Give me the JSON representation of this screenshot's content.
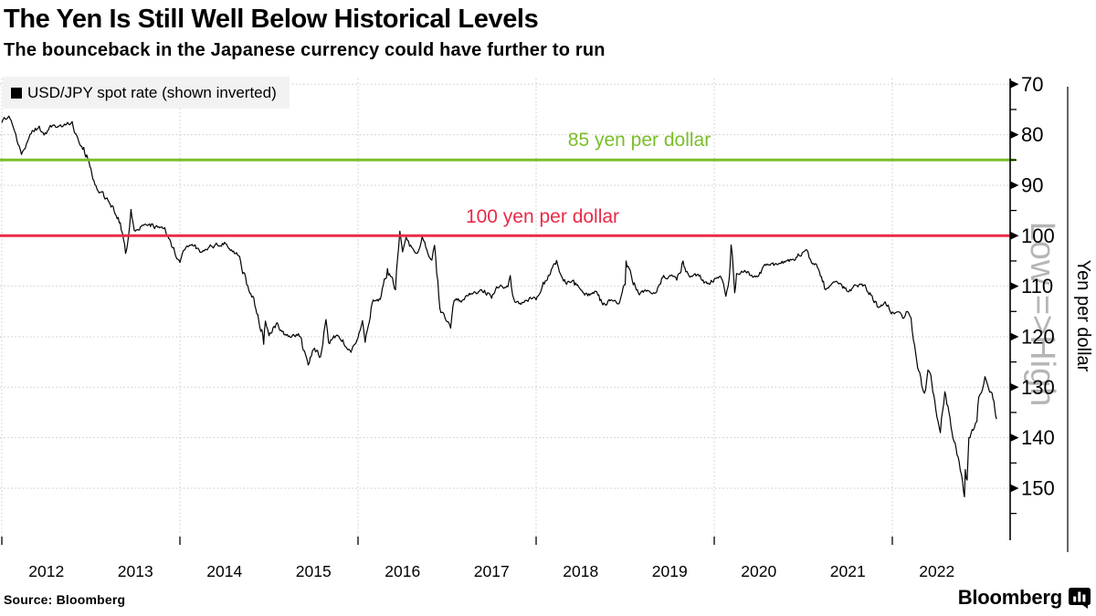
{
  "header": {
    "title": "The Yen Is Still Well Below Historical Levels",
    "subtitle": "The bounceback in the Japanese currency could have further to run"
  },
  "legend": {
    "label": "USD/JPY spot rate (shown inverted)"
  },
  "footer": {
    "source": "Source: Bloomberg",
    "brand": "Bloomberg"
  },
  "colors": {
    "series": "#000000",
    "grid": "#c9c9c9",
    "axis": "#000000",
    "watermark": "#b5b5b5",
    "legend_bg": "#f2f2f2"
  },
  "chart_data": {
    "type": "line",
    "title": "USD/JPY spot rate (shown inverted)",
    "x_axis": {
      "range": [
        2012.0,
        2023.3
      ],
      "year_labels": [
        "2012",
        "2013",
        "2014",
        "2015",
        "2016",
        "2017",
        "2018",
        "2019",
        "2020",
        "2021",
        "2022"
      ],
      "gridline_years": [
        2012,
        2014,
        2016,
        2018,
        2020,
        2022
      ]
    },
    "y_axis": {
      "title": "Yen per dollar",
      "watermark": "Low =>High",
      "inverted": true,
      "range": [
        70,
        155
      ],
      "major_ticks": [
        70,
        80,
        90,
        100,
        110,
        120,
        130,
        140,
        150
      ],
      "minor_ticks": [
        75,
        85,
        95,
        105,
        115,
        125,
        135,
        145,
        155
      ]
    },
    "reference_lines": [
      {
        "value": 85,
        "label": "85 yen per dollar",
        "color": "#7abe28"
      },
      {
        "value": 100,
        "label": "100 yen per dollar",
        "color": "#e82a48"
      }
    ],
    "series": [
      {
        "name": "USD/JPY spot rate (shown inverted)",
        "color": "#000000",
        "points": [
          [
            2012.0,
            77.6
          ],
          [
            2012.04,
            76.9
          ],
          [
            2012.08,
            76.3
          ],
          [
            2012.13,
            78.6
          ],
          [
            2012.17,
            81.2
          ],
          [
            2012.22,
            83.9
          ],
          [
            2012.25,
            82.9
          ],
          [
            2012.29,
            81.3
          ],
          [
            2012.33,
            79.8
          ],
          [
            2012.42,
            78.3
          ],
          [
            2012.46,
            79.5
          ],
          [
            2012.5,
            79.8
          ],
          [
            2012.58,
            78.1
          ],
          [
            2012.67,
            78.4
          ],
          [
            2012.75,
            77.9
          ],
          [
            2012.79,
            77.4
          ],
          [
            2012.83,
            79.8
          ],
          [
            2012.92,
            82.5
          ],
          [
            2013.0,
            86.7
          ],
          [
            2013.08,
            91.1
          ],
          [
            2013.17,
            92.6
          ],
          [
            2013.25,
            94.2
          ],
          [
            2013.33,
            97.4
          ],
          [
            2013.39,
            103.5
          ],
          [
            2013.42,
            100.4
          ],
          [
            2013.45,
            94.8
          ],
          [
            2013.5,
            99.1
          ],
          [
            2013.58,
            97.9
          ],
          [
            2013.67,
            98.2
          ],
          [
            2013.75,
            98.3
          ],
          [
            2013.83,
            98.4
          ],
          [
            2013.92,
            102.4
          ],
          [
            2014.0,
            105.3
          ],
          [
            2014.04,
            102.9
          ],
          [
            2014.08,
            102.0
          ],
          [
            2014.17,
            101.8
          ],
          [
            2014.25,
            103.2
          ],
          [
            2014.33,
            102.2
          ],
          [
            2014.42,
            101.8
          ],
          [
            2014.5,
            101.3
          ],
          [
            2014.58,
            102.8
          ],
          [
            2014.67,
            104.1
          ],
          [
            2014.75,
            109.7
          ],
          [
            2014.83,
            112.3
          ],
          [
            2014.92,
            118.6
          ],
          [
            2014.94,
            121.5
          ],
          [
            2014.96,
            116.9
          ],
          [
            2015.0,
            119.8
          ],
          [
            2015.08,
            117.5
          ],
          [
            2015.17,
            119.6
          ],
          [
            2015.25,
            120.1
          ],
          [
            2015.33,
            119.4
          ],
          [
            2015.42,
            124.1
          ],
          [
            2015.44,
            125.6
          ],
          [
            2015.5,
            122.5
          ],
          [
            2015.58,
            123.9
          ],
          [
            2015.64,
            116.6
          ],
          [
            2015.67,
            121.2
          ],
          [
            2015.75,
            119.9
          ],
          [
            2015.83,
            120.6
          ],
          [
            2015.92,
            123.1
          ],
          [
            2016.0,
            120.2
          ],
          [
            2016.05,
            116.8
          ],
          [
            2016.08,
            121.1
          ],
          [
            2016.17,
            112.7
          ],
          [
            2016.25,
            112.6
          ],
          [
            2016.33,
            106.5
          ],
          [
            2016.42,
            110.7
          ],
          [
            2016.47,
            99.1
          ],
          [
            2016.5,
            103.2
          ],
          [
            2016.54,
            100.3
          ],
          [
            2016.58,
            102.1
          ],
          [
            2016.67,
            103.4
          ],
          [
            2016.72,
            100.2
          ],
          [
            2016.75,
            101.3
          ],
          [
            2016.83,
            104.8
          ],
          [
            2016.86,
            101.9
          ],
          [
            2016.92,
            114.5
          ],
          [
            2017.0,
            117.0
          ],
          [
            2017.04,
            118.3
          ],
          [
            2017.08,
            112.8
          ],
          [
            2017.17,
            112.8
          ],
          [
            2017.25,
            111.4
          ],
          [
            2017.33,
            111.5
          ],
          [
            2017.42,
            110.8
          ],
          [
            2017.5,
            112.4
          ],
          [
            2017.58,
            110.3
          ],
          [
            2017.67,
            110.0
          ],
          [
            2017.71,
            107.9
          ],
          [
            2017.75,
            112.5
          ],
          [
            2017.83,
            113.6
          ],
          [
            2017.92,
            112.5
          ],
          [
            2018.0,
            112.7
          ],
          [
            2018.08,
            109.2
          ],
          [
            2018.17,
            106.7
          ],
          [
            2018.23,
            104.9
          ],
          [
            2018.25,
            106.3
          ],
          [
            2018.33,
            109.3
          ],
          [
            2018.42,
            108.8
          ],
          [
            2018.5,
            110.7
          ],
          [
            2018.58,
            111.9
          ],
          [
            2018.67,
            111.0
          ],
          [
            2018.75,
            113.7
          ],
          [
            2018.83,
            112.9
          ],
          [
            2018.92,
            113.5
          ],
          [
            2019.0,
            109.7
          ],
          [
            2019.01,
            105.0
          ],
          [
            2019.08,
            108.9
          ],
          [
            2019.17,
            111.4
          ],
          [
            2019.25,
            110.8
          ],
          [
            2019.33,
            111.4
          ],
          [
            2019.42,
            108.3
          ],
          [
            2019.5,
            107.9
          ],
          [
            2019.58,
            108.8
          ],
          [
            2019.65,
            105.0
          ],
          [
            2019.67,
            106.3
          ],
          [
            2019.75,
            108.1
          ],
          [
            2019.83,
            108.0
          ],
          [
            2019.92,
            109.5
          ],
          [
            2020.0,
            108.6
          ],
          [
            2020.08,
            108.4
          ],
          [
            2020.13,
            112.0
          ],
          [
            2020.17,
            108.1
          ],
          [
            2020.19,
            101.8
          ],
          [
            2020.23,
            111.3
          ],
          [
            2020.25,
            107.5
          ],
          [
            2020.33,
            107.2
          ],
          [
            2020.42,
            107.8
          ],
          [
            2020.5,
            107.9
          ],
          [
            2020.58,
            105.9
          ],
          [
            2020.67,
            105.9
          ],
          [
            2020.75,
            105.5
          ],
          [
            2020.83,
            104.7
          ],
          [
            2020.92,
            104.3
          ],
          [
            2021.0,
            103.2
          ],
          [
            2021.04,
            102.8
          ],
          [
            2021.08,
            104.7
          ],
          [
            2021.17,
            106.6
          ],
          [
            2021.25,
            110.7
          ],
          [
            2021.33,
            109.3
          ],
          [
            2021.42,
            109.5
          ],
          [
            2021.5,
            111.1
          ],
          [
            2021.58,
            109.7
          ],
          [
            2021.67,
            110.0
          ],
          [
            2021.75,
            111.3
          ],
          [
            2021.83,
            114.0
          ],
          [
            2021.92,
            113.1
          ],
          [
            2022.0,
            115.1
          ],
          [
            2022.08,
            115.1
          ],
          [
            2022.13,
            116.3
          ],
          [
            2022.17,
            115.0
          ],
          [
            2022.21,
            116.3
          ],
          [
            2022.25,
            121.7
          ],
          [
            2022.33,
            129.7
          ],
          [
            2022.36,
            131.2
          ],
          [
            2022.4,
            126.6
          ],
          [
            2022.42,
            127.1
          ],
          [
            2022.5,
            135.9
          ],
          [
            2022.54,
            139.0
          ],
          [
            2022.59,
            130.9
          ],
          [
            2022.67,
            138.9
          ],
          [
            2022.75,
            144.7
          ],
          [
            2022.79,
            148.8
          ],
          [
            2022.81,
            151.7
          ],
          [
            2022.82,
            146.3
          ],
          [
            2022.84,
            148.4
          ],
          [
            2022.86,
            140.0
          ],
          [
            2022.92,
            138.1
          ],
          [
            2022.95,
            136.8
          ],
          [
            2022.97,
            132.0
          ],
          [
            2023.0,
            131.1
          ],
          [
            2023.04,
            127.9
          ],
          [
            2023.08,
            130.2
          ],
          [
            2023.12,
            131.2
          ],
          [
            2023.15,
            134.2
          ],
          [
            2023.17,
            136.3
          ]
        ]
      }
    ]
  }
}
